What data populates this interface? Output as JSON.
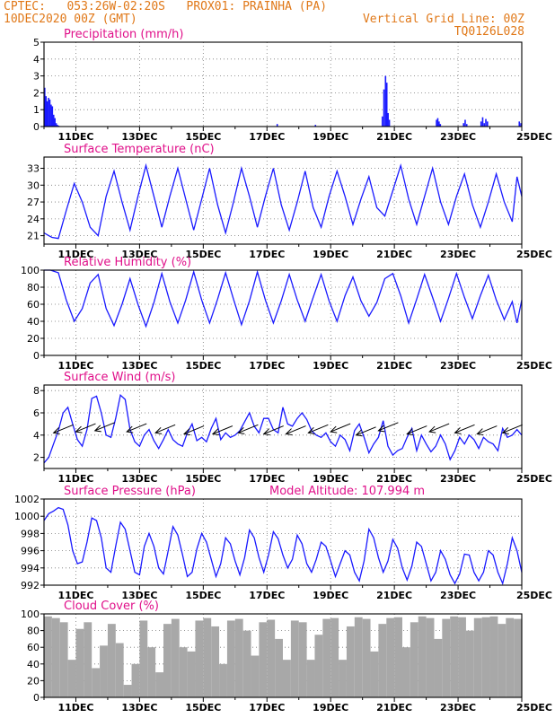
{
  "header": {
    "line1_left": "CPTEC:   053:26W-02:20S   PROX01: PRAINHA (PA)",
    "line2_left": "10DEC2020 00Z (GMT)",
    "line2_right": "Vertical Grid Line: 00Z",
    "line3_right": "TQ0126L028"
  },
  "colors": {
    "header": "#e07818",
    "title": "#e0108a",
    "series": "#1a1aff",
    "cloud": "#a8a8a8",
    "arrow": "#000000"
  },
  "chart_data": [
    {
      "type": "bar",
      "title": "Precipitation (mm/h)",
      "x_unit": "days since 10DEC2020 00Z",
      "ylim": [
        0,
        5
      ],
      "yticks": [
        0,
        1,
        2,
        3,
        4,
        5
      ],
      "xtick_labels": [
        "11DEC",
        "13DEC",
        "15DEC",
        "17DEC",
        "19DEC",
        "21DEC",
        "23DEC",
        "25DEC"
      ],
      "x": [
        0.0,
        0.04,
        0.08,
        0.12,
        0.16,
        0.2,
        0.24,
        0.28,
        0.32,
        0.36,
        0.4,
        0.44,
        7.3,
        8.5,
        10.6,
        10.65,
        10.7,
        10.74,
        10.78,
        10.82,
        12.3,
        12.34,
        12.38,
        12.42,
        13.15,
        13.2,
        13.25,
        13.7,
        13.75,
        13.8,
        13.85,
        13.9,
        14.9,
        14.95
      ],
      "values": [
        2.3,
        1.8,
        1.5,
        1.7,
        1.6,
        1.3,
        1.2,
        0.7,
        0.5,
        0.2,
        0.1,
        0.05,
        0.15,
        0.1,
        0.6,
        2.2,
        3.0,
        2.6,
        0.8,
        0.4,
        0.4,
        0.5,
        0.3,
        0.15,
        0.2,
        0.4,
        0.15,
        0.3,
        0.55,
        0.2,
        0.45,
        0.3,
        0.3,
        0.2
      ]
    },
    {
      "type": "line",
      "title": "Surface Temperature (nC)",
      "ylim": [
        19.5,
        35
      ],
      "yticks": [
        21,
        24,
        27,
        30,
        33
      ],
      "xtick_labels": [
        "11DEC",
        "13DEC",
        "15DEC",
        "17DEC",
        "19DEC",
        "21DEC",
        "23DEC",
        "25DEC"
      ],
      "x": [
        0,
        0.15,
        0.25,
        0.45,
        0.7,
        0.95,
        1.2,
        1.45,
        1.7,
        1.95,
        2.2,
        2.45,
        2.7,
        2.95,
        3.2,
        3.45,
        3.7,
        3.95,
        4.2,
        4.45,
        4.7,
        4.95,
        5.2,
        5.45,
        5.7,
        5.95,
        6.2,
        6.45,
        6.7,
        6.95,
        7.2,
        7.45,
        7.7,
        7.95,
        8.2,
        8.45,
        8.7,
        8.95,
        9.2,
        9.45,
        9.7,
        9.95,
        10.2,
        10.45,
        10.7,
        10.95,
        11.2,
        11.45,
        11.7,
        11.95,
        12.2,
        12.45,
        12.7,
        12.95,
        13.2,
        13.45,
        13.7,
        13.95,
        14.2,
        14.45,
        14.7,
        14.85,
        15
      ],
      "values": [
        21.5,
        21.0,
        20.7,
        20.5,
        25.5,
        30.3,
        27.0,
        22.5,
        21.0,
        28.0,
        32.5,
        27.0,
        22.0,
        28.0,
        33.5,
        28.0,
        22.5,
        28.0,
        33.0,
        27.5,
        22.0,
        27.5,
        33.0,
        26.5,
        21.5,
        27.0,
        33.0,
        28.0,
        22.5,
        28.0,
        33.0,
        26.5,
        22.0,
        27.0,
        32.5,
        26.0,
        22.5,
        28.0,
        32.5,
        28.0,
        23.0,
        27.5,
        31.5,
        26.0,
        24.5,
        29.0,
        33.5,
        27.5,
        23.0,
        28.0,
        33.0,
        27.0,
        23.0,
        28.0,
        32.0,
        26.5,
        22.5,
        27.0,
        32.0,
        27.0,
        23.5,
        31.5,
        28.0
      ]
    },
    {
      "type": "line",
      "title": "Relative Humidity (%)",
      "ylim": [
        0,
        100
      ],
      "yticks": [
        0,
        20,
        40,
        60,
        80,
        100
      ],
      "xtick_labels": [
        "11DEC",
        "13DEC",
        "15DEC",
        "17DEC",
        "19DEC",
        "21DEC",
        "23DEC",
        "25DEC"
      ],
      "x": [
        0,
        0.2,
        0.45,
        0.7,
        0.95,
        1.2,
        1.45,
        1.7,
        1.95,
        2.2,
        2.45,
        2.7,
        2.95,
        3.2,
        3.45,
        3.7,
        3.95,
        4.2,
        4.45,
        4.7,
        4.95,
        5.2,
        5.45,
        5.7,
        5.95,
        6.2,
        6.45,
        6.7,
        6.95,
        7.2,
        7.45,
        7.7,
        7.95,
        8.2,
        8.45,
        8.7,
        8.95,
        9.2,
        9.45,
        9.7,
        9.95,
        10.2,
        10.45,
        10.7,
        10.95,
        11.2,
        11.45,
        11.7,
        11.95,
        12.2,
        12.45,
        12.7,
        12.95,
        13.2,
        13.45,
        13.7,
        13.95,
        14.2,
        14.45,
        14.7,
        14.85,
        15
      ],
      "values": [
        100,
        100,
        97,
        65,
        40,
        55,
        85,
        95,
        55,
        35,
        60,
        90,
        60,
        34,
        62,
        96,
        63,
        38,
        65,
        98,
        65,
        38,
        66,
        97,
        66,
        36,
        64,
        98,
        65,
        38,
        64,
        95,
        65,
        40,
        68,
        95,
        64,
        40,
        70,
        92,
        64,
        46,
        62,
        90,
        96,
        70,
        38,
        66,
        95,
        68,
        40,
        67,
        96,
        68,
        43,
        70,
        94,
        65,
        42,
        63,
        38,
        65
      ]
    },
    {
      "type": "line",
      "title": "Surface Wind (m/s)",
      "ylim": [
        1,
        8.5
      ],
      "yticks": [
        2,
        4,
        6,
        8
      ],
      "xtick_labels": [
        "11DEC",
        "13DEC",
        "15DEC",
        "17DEC",
        "19DEC",
        "21DEC",
        "23DEC",
        "25DEC"
      ],
      "x": [
        0,
        0.15,
        0.3,
        0.45,
        0.6,
        0.75,
        0.9,
        1.05,
        1.2,
        1.35,
        1.5,
        1.65,
        1.8,
        1.95,
        2.1,
        2.25,
        2.4,
        2.55,
        2.7,
        2.85,
        3.0,
        3.15,
        3.3,
        3.45,
        3.6,
        3.75,
        3.9,
        4.05,
        4.2,
        4.35,
        4.5,
        4.65,
        4.8,
        4.95,
        5.1,
        5.25,
        5.4,
        5.55,
        5.7,
        5.85,
        6.0,
        6.15,
        6.3,
        6.45,
        6.6,
        6.75,
        6.9,
        7.05,
        7.2,
        7.35,
        7.5,
        7.65,
        7.8,
        7.95,
        8.1,
        8.25,
        8.4,
        8.55,
        8.7,
        8.85,
        9.0,
        9.15,
        9.3,
        9.45,
        9.6,
        9.75,
        9.9,
        10.05,
        10.2,
        10.35,
        10.5,
        10.65,
        10.8,
        10.95,
        11.1,
        11.25,
        11.4,
        11.55,
        11.7,
        11.85,
        12.0,
        12.15,
        12.3,
        12.45,
        12.6,
        12.75,
        12.9,
        13.05,
        13.2,
        13.35,
        13.5,
        13.65,
        13.8,
        13.95,
        14.1,
        14.25,
        14.4,
        14.55,
        14.7,
        14.85,
        15
      ],
      "values": [
        1.5,
        2.0,
        3.2,
        4.4,
        6.0,
        6.5,
        5.0,
        3.6,
        3.0,
        4.5,
        7.3,
        7.5,
        6.0,
        4.0,
        3.8,
        5.5,
        7.6,
        7.2,
        4.5,
        3.4,
        3.0,
        4.0,
        4.5,
        3.5,
        2.8,
        3.6,
        4.5,
        3.6,
        3.2,
        3.0,
        4.2,
        5.0,
        3.5,
        3.8,
        3.4,
        4.6,
        5.5,
        3.6,
        4.2,
        3.8,
        4.0,
        4.4,
        5.2,
        6.0,
        4.8,
        4.2,
        5.5,
        5.5,
        4.5,
        4.2,
        6.5,
        5.0,
        4.8,
        5.5,
        6.0,
        5.4,
        4.4,
        4.0,
        3.8,
        4.2,
        3.4,
        3.0,
        4.0,
        3.6,
        2.6,
        4.4,
        5.0,
        3.8,
        2.4,
        3.2,
        3.8,
        5.3,
        3.0,
        2.2,
        2.6,
        2.8,
        3.8,
        4.6,
        2.6,
        4.0,
        3.2,
        2.5,
        3.0,
        4.0,
        3.2,
        1.8,
        2.6,
        3.8,
        3.2,
        4.0,
        3.6,
        2.8,
        3.8,
        3.4,
        3.2,
        2.6,
        4.6,
        3.8,
        4.0,
        4.5,
        4.0
      ],
      "arrows": [
        {
          "x": 0.3,
          "y": 4.2
        },
        {
          "x": 1.0,
          "y": 4.3
        },
        {
          "x": 1.6,
          "y": 4.4
        },
        {
          "x": 2.6,
          "y": 4.3
        },
        {
          "x": 3.5,
          "y": 4.2
        },
        {
          "x": 4.4,
          "y": 4.1
        },
        {
          "x": 5.3,
          "y": 4.1
        },
        {
          "x": 6.1,
          "y": 4.2
        },
        {
          "x": 6.9,
          "y": 4.1
        },
        {
          "x": 7.6,
          "y": 4.1
        },
        {
          "x": 8.3,
          "y": 4.2
        },
        {
          "x": 9.0,
          "y": 4.3
        },
        {
          "x": 9.8,
          "y": 4.0
        },
        {
          "x": 10.5,
          "y": 4.4
        },
        {
          "x": 11.4,
          "y": 4.1
        },
        {
          "x": 12.1,
          "y": 4.3
        },
        {
          "x": 12.9,
          "y": 4.2
        },
        {
          "x": 13.6,
          "y": 4.1
        },
        {
          "x": 14.4,
          "y": 4.2
        }
      ]
    },
    {
      "type": "line",
      "title": "Surface Pressure (hPa)",
      "annotation": "Model Altitude: 107.994 m",
      "ylim": [
        992,
        1002
      ],
      "yticks": [
        992,
        994,
        996,
        998,
        1000,
        1002
      ],
      "xtick_labels": [
        "11DEC",
        "13DEC",
        "15DEC",
        "17DEC",
        "19DEC",
        "21DEC",
        "23DEC",
        "25DEC"
      ],
      "x": [
        0,
        0.15,
        0.3,
        0.45,
        0.6,
        0.75,
        0.9,
        1.05,
        1.2,
        1.35,
        1.5,
        1.65,
        1.8,
        1.95,
        2.1,
        2.25,
        2.4,
        2.55,
        2.7,
        2.85,
        3.0,
        3.15,
        3.3,
        3.45,
        3.6,
        3.75,
        3.9,
        4.05,
        4.2,
        4.35,
        4.5,
        4.65,
        4.8,
        4.95,
        5.1,
        5.25,
        5.4,
        5.55,
        5.7,
        5.85,
        6.0,
        6.15,
        6.3,
        6.45,
        6.6,
        6.75,
        6.9,
        7.05,
        7.2,
        7.35,
        7.5,
        7.65,
        7.8,
        7.95,
        8.1,
        8.25,
        8.4,
        8.55,
        8.7,
        8.85,
        9.0,
        9.15,
        9.3,
        9.45,
        9.6,
        9.75,
        9.9,
        10.05,
        10.2,
        10.35,
        10.5,
        10.65,
        10.8,
        10.95,
        11.1,
        11.25,
        11.4,
        11.55,
        11.7,
        11.85,
        12.0,
        12.15,
        12.3,
        12.45,
        12.6,
        12.75,
        12.9,
        13.05,
        13.2,
        13.35,
        13.5,
        13.65,
        13.8,
        13.95,
        14.1,
        14.25,
        14.4,
        14.55,
        14.7,
        14.85,
        15
      ],
      "values": [
        999.5,
        1000.3,
        1000.6,
        1001.0,
        1000.8,
        999.0,
        996.0,
        994.5,
        994.7,
        997.0,
        999.8,
        999.5,
        997.5,
        994.0,
        993.5,
        996.5,
        999.3,
        998.5,
        996.0,
        993.5,
        993.2,
        996.5,
        998.0,
        996.5,
        994.0,
        993.3,
        996.0,
        998.8,
        997.8,
        995.5,
        993.0,
        993.5,
        996.2,
        998.0,
        997.0,
        995.0,
        993.0,
        994.5,
        997.5,
        996.8,
        994.8,
        993.2,
        995.2,
        998.4,
        997.5,
        995.2,
        993.5,
        995.5,
        998.2,
        997.4,
        995.5,
        994.0,
        995.0,
        997.8,
        996.8,
        994.5,
        993.5,
        995.0,
        997.0,
        996.5,
        994.8,
        993.0,
        994.5,
        996.0,
        995.5,
        993.5,
        992.5,
        994.8,
        998.5,
        997.5,
        995.2,
        993.5,
        994.8,
        997.3,
        996.3,
        994.0,
        992.6,
        994.2,
        997.0,
        996.5,
        994.5,
        992.5,
        993.5,
        996.0,
        995.0,
        993.2,
        992.2,
        993.3,
        995.6,
        995.5,
        993.5,
        992.5,
        993.5,
        996.0,
        995.5,
        993.5,
        992.2,
        994.5,
        997.5,
        996.0,
        993.5
      ]
    },
    {
      "type": "bar",
      "title": "Cloud Cover (%)",
      "ylim": [
        0,
        100
      ],
      "yticks": [
        0,
        20,
        40,
        60,
        80,
        100
      ],
      "xtick_labels": [
        "11DEC",
        "13DEC",
        "15DEC",
        "17DEC",
        "19DEC",
        "21DEC",
        "23DEC",
        "25DEC"
      ],
      "x": [
        0,
        0.25,
        0.5,
        0.75,
        1,
        1.25,
        1.5,
        1.75,
        2,
        2.25,
        2.5,
        2.75,
        3,
        3.25,
        3.5,
        3.75,
        4,
        4.25,
        4.5,
        4.75,
        5,
        5.25,
        5.5,
        5.75,
        6,
        6.25,
        6.5,
        6.75,
        7,
        7.25,
        7.5,
        7.75,
        8,
        8.25,
        8.5,
        8.75,
        9,
        9.25,
        9.5,
        9.75,
        10,
        10.25,
        10.5,
        10.75,
        11,
        11.25,
        11.5,
        11.75,
        12,
        12.25,
        12.5,
        12.75,
        13,
        13.25,
        13.5,
        13.75,
        14,
        14.25,
        14.5,
        14.75
      ],
      "values": [
        97,
        95,
        90,
        45,
        82,
        90,
        35,
        62,
        88,
        65,
        15,
        40,
        92,
        60,
        30,
        88,
        94,
        60,
        55,
        92,
        95,
        85,
        40,
        92,
        94,
        80,
        50,
        90,
        93,
        70,
        45,
        92,
        90,
        45,
        75,
        94,
        95,
        45,
        85,
        96,
        94,
        55,
        88,
        95,
        96,
        60,
        90,
        97,
        95,
        70,
        94,
        97,
        96,
        80,
        95,
        96,
        97,
        88,
        95,
        94
      ]
    }
  ]
}
